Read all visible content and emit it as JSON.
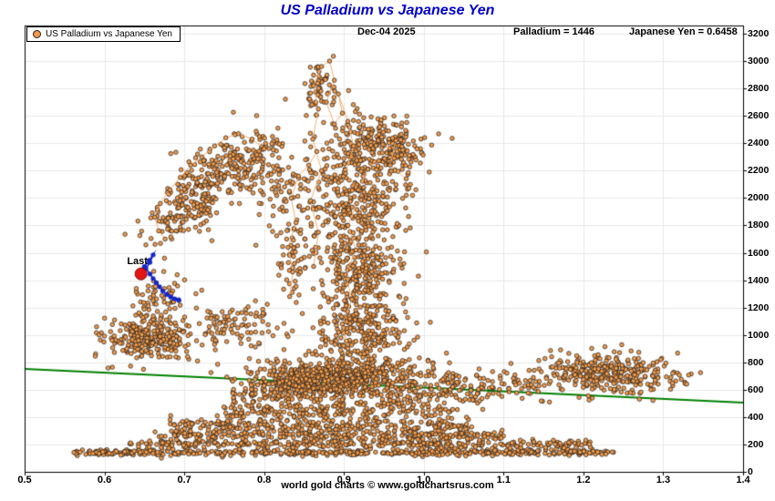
{
  "title": "US Palladium vs Japanese Yen",
  "legend": {
    "label": "US Palladium vs Japanese Yen",
    "marker": "orange-dot-icon"
  },
  "header": {
    "date": "Dec-04  2025",
    "palladium": "Palladium = 1446",
    "yen": "Japanese Yen = 0.6458"
  },
  "last_label": "Last",
  "footer": "world gold charts © www.goldchartsrus.com",
  "chart_data": {
    "type": "scatter",
    "title": "US Palladium vs Japanese Yen",
    "series_name": "US Palladium vs Japanese Yen",
    "xlabel": "",
    "ylabel": "",
    "xlim": [
      0.5,
      1.4
    ],
    "ylim": [
      0,
      3200
    ],
    "x_ticks": [
      0.5,
      0.6,
      0.7,
      0.8,
      0.9,
      1.0,
      1.1,
      1.2,
      1.3,
      1.4
    ],
    "y_ticks": [
      0,
      200,
      400,
      600,
      800,
      1000,
      1200,
      1400,
      1600,
      1800,
      2000,
      2200,
      2400,
      2600,
      2800,
      3000,
      3200
    ],
    "grid": true,
    "legend_position": "top-left",
    "colors": {
      "point_fill": "#F29B4B",
      "point_stroke": "#1a1a1a",
      "connect_line": "#F8B070",
      "trend": "#008000",
      "recent": "#1626C9",
      "last": "#E51515",
      "grid": "#e7e7e7",
      "axis": "#000000",
      "title": "#0000CC"
    },
    "readout": {
      "date": "Dec-04 2025",
      "palladium": 1446,
      "japanese_yen": 0.6458
    },
    "last_point": {
      "x": 0.6458,
      "y": 1446
    },
    "trend_line": {
      "x": [
        0.5,
        1.4
      ],
      "y": [
        752,
        505
      ]
    },
    "recent_path": [
      [
        0.6458,
        1446
      ],
      [
        0.65,
        1500
      ],
      [
        0.656,
        1545
      ],
      [
        0.661,
        1585
      ],
      [
        0.657,
        1530
      ],
      [
        0.652,
        1485
      ],
      [
        0.657,
        1445
      ],
      [
        0.661,
        1412
      ],
      [
        0.665,
        1382
      ],
      [
        0.669,
        1352
      ],
      [
        0.673,
        1322
      ],
      [
        0.678,
        1296
      ],
      [
        0.683,
        1278
      ],
      [
        0.688,
        1264
      ],
      [
        0.693,
        1256
      ]
    ],
    "clusters": [
      {
        "t": "band",
        "x0": 0.56,
        "x1": 0.63,
        "y": 140,
        "sy": 8,
        "n": 40
      },
      {
        "t": "band",
        "x0": 0.58,
        "x1": 1.24,
        "y": 140,
        "sy": 12,
        "n": 430
      },
      {
        "t": "band",
        "x0": 0.63,
        "x1": 1.21,
        "y": 200,
        "sy": 15,
        "n": 300
      },
      {
        "t": "band",
        "x0": 0.66,
        "x1": 1.1,
        "y": 265,
        "sy": 20,
        "n": 260
      },
      {
        "t": "band",
        "x0": 0.68,
        "x1": 1.06,
        "y": 340,
        "sy": 25,
        "n": 240
      },
      {
        "t": "band",
        "x0": 0.74,
        "x1": 1.05,
        "y": 445,
        "sy": 35,
        "n": 200
      },
      {
        "t": "band",
        "x0": 0.76,
        "x1": 1.08,
        "y": 565,
        "sy": 40,
        "n": 180
      },
      {
        "t": "g",
        "x": 0.9,
        "y": 700,
        "sx": 0.055,
        "sy": 70,
        "n": 550
      },
      {
        "t": "g",
        "x": 0.845,
        "y": 645,
        "sx": 0.03,
        "sy": 55,
        "n": 150
      },
      {
        "t": "g",
        "x": 1.23,
        "y": 710,
        "sx": 0.045,
        "sy": 70,
        "n": 330
      },
      {
        "t": "band",
        "x0": 1.02,
        "x1": 1.16,
        "y": 640,
        "sy": 55,
        "n": 90
      },
      {
        "t": "g",
        "x": 0.925,
        "y": 1050,
        "sx": 0.03,
        "sy": 110,
        "n": 240
      },
      {
        "t": "g",
        "x": 0.92,
        "y": 1500,
        "sx": 0.028,
        "sy": 180,
        "n": 260
      },
      {
        "t": "g",
        "x": 0.915,
        "y": 2000,
        "sx": 0.03,
        "sy": 200,
        "n": 300
      },
      {
        "t": "g",
        "x": 0.93,
        "y": 2400,
        "sx": 0.025,
        "sy": 120,
        "n": 150
      },
      {
        "t": "g",
        "x": 0.87,
        "y": 2780,
        "sx": 0.012,
        "sy": 110,
        "n": 60
      },
      {
        "t": "g",
        "x": 0.97,
        "y": 2350,
        "sx": 0.018,
        "sy": 90,
        "n": 90
      },
      {
        "t": "g",
        "x": 0.655,
        "y": 980,
        "sx": 0.028,
        "sy": 75,
        "n": 230
      },
      {
        "t": "g",
        "x": 0.67,
        "y": 1250,
        "sx": 0.02,
        "sy": 90,
        "n": 70
      },
      {
        "t": "g",
        "x": 0.7,
        "y": 1900,
        "sx": 0.022,
        "sy": 140,
        "c": 0.5,
        "n": 160
      },
      {
        "t": "g",
        "x": 0.76,
        "y": 2250,
        "sx": 0.035,
        "sy": 130,
        "c": 0.5,
        "n": 200
      },
      {
        "t": "g",
        "x": 0.82,
        "y": 2100,
        "sx": 0.02,
        "sy": 150,
        "n": 70
      },
      {
        "t": "g",
        "x": 0.835,
        "y": 1600,
        "sx": 0.012,
        "sy": 200,
        "n": 60
      },
      {
        "t": "g",
        "x": 0.75,
        "y": 1050,
        "sx": 0.04,
        "sy": 90,
        "n": 110
      }
    ],
    "paths": [
      [
        [
          0.862,
          1500
        ],
        [
          0.868,
          1750
        ],
        [
          0.858,
          1980
        ],
        [
          0.872,
          2200
        ],
        [
          0.861,
          2430
        ],
        [
          0.868,
          2650
        ],
        [
          0.862,
          2820
        ],
        [
          0.872,
          2960
        ],
        [
          0.882,
          3000
        ],
        [
          0.888,
          2860
        ],
        [
          0.878,
          2700
        ],
        [
          0.888,
          2540
        ],
        [
          0.898,
          2620
        ],
        [
          0.893,
          2760
        ],
        [
          0.905,
          2560
        ],
        [
          0.912,
          2380
        ],
        [
          0.902,
          2180
        ],
        [
          0.918,
          2060
        ],
        [
          0.93,
          2210
        ],
        [
          0.948,
          2330
        ],
        [
          0.965,
          2420
        ],
        [
          0.958,
          2240
        ],
        [
          0.978,
          2140
        ]
      ],
      [
        [
          0.8,
          2360
        ],
        [
          0.785,
          2430
        ],
        [
          0.768,
          2470
        ],
        [
          0.752,
          2440
        ],
        [
          0.738,
          2380
        ],
        [
          0.722,
          2300
        ],
        [
          0.708,
          2240
        ],
        [
          0.695,
          2150
        ],
        [
          0.682,
          2060
        ],
        [
          0.67,
          1960
        ],
        [
          0.663,
          1860
        ],
        [
          0.668,
          1760
        ],
        [
          0.676,
          1700
        ]
      ],
      [
        [
          0.832,
          1280
        ],
        [
          0.836,
          1460
        ],
        [
          0.83,
          1640
        ],
        [
          0.84,
          1820
        ],
        [
          0.834,
          2000
        ],
        [
          0.843,
          2160
        ],
        [
          0.856,
          2240
        ],
        [
          0.866,
          2340
        ]
      ],
      [
        [
          0.905,
          900
        ],
        [
          0.898,
          1080
        ],
        [
          0.91,
          1260
        ],
        [
          0.902,
          1440
        ],
        [
          0.915,
          1620
        ],
        [
          0.905,
          1800
        ],
        [
          0.916,
          1960
        ]
      ]
    ]
  }
}
